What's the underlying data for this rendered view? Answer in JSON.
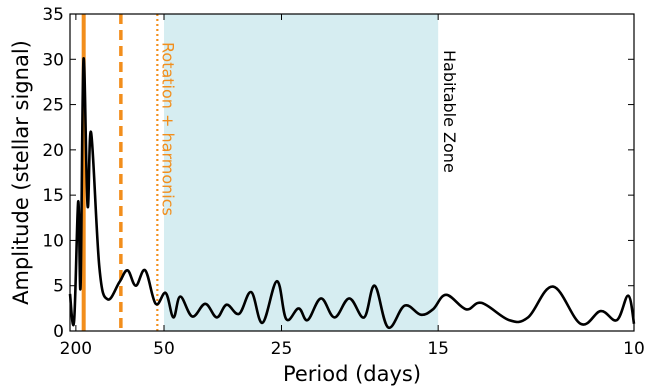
{
  "chart_data": {
    "type": "line",
    "xlabel": "Period (days)",
    "ylabel": "Amplitude (stellar signal)",
    "x_scale": "reciprocal",
    "x_range_days": [
      250,
      10
    ],
    "ylim": [
      0,
      35
    ],
    "xticks": [
      {
        "value": 200,
        "label": "200"
      },
      {
        "value": 50,
        "label": "50"
      },
      {
        "value": 25,
        "label": "25"
      },
      {
        "value": 15,
        "label": "15"
      },
      {
        "value": 10,
        "label": "10"
      }
    ],
    "yticks": [
      0,
      5,
      10,
      15,
      20,
      25,
      30,
      35
    ],
    "series": [
      {
        "color": "#000000",
        "points": [
          [
            250.0,
            4.1
          ],
          [
            212.8,
            1.1
          ],
          [
            185.2,
            14.3
          ],
          [
            172.4,
            5.0
          ],
          [
            158.7,
            30.0
          ],
          [
            142.9,
            13.8
          ],
          [
            131.6,
            21.9
          ],
          [
            111.1,
            7.0
          ],
          [
            96.2,
            3.5
          ],
          [
            80.6,
            5.4
          ],
          [
            72.5,
            6.7
          ],
          [
            65.8,
            5.0
          ],
          [
            59.5,
            6.7
          ],
          [
            53.8,
            3.0
          ],
          [
            49.3,
            4.2
          ],
          [
            46.3,
            1.5
          ],
          [
            43.9,
            3.8
          ],
          [
            40.3,
            1.6
          ],
          [
            37.0,
            3.0
          ],
          [
            34.5,
            1.5
          ],
          [
            32.6,
            2.9
          ],
          [
            30.5,
            1.9
          ],
          [
            28.7,
            4.3
          ],
          [
            27.2,
            0.9
          ],
          [
            25.5,
            5.5
          ],
          [
            24.5,
            1.3
          ],
          [
            23.3,
            2.5
          ],
          [
            22.5,
            1.2
          ],
          [
            21.4,
            3.6
          ],
          [
            20.4,
            1.5
          ],
          [
            19.4,
            3.6
          ],
          [
            18.5,
            1.5
          ],
          [
            17.9,
            5.0
          ],
          [
            17.2,
            0.4
          ],
          [
            16.4,
            2.8
          ],
          [
            15.7,
            1.8
          ],
          [
            15.2,
            2.4
          ],
          [
            14.7,
            4.0
          ],
          [
            14.0,
            2.4
          ],
          [
            13.5,
            3.1
          ],
          [
            12.7,
            1.2
          ],
          [
            12.2,
            1.5
          ],
          [
            11.6,
            4.9
          ],
          [
            11.0,
            0.8
          ],
          [
            10.6,
            2.2
          ],
          [
            10.3,
            1.2
          ],
          [
            10.1,
            3.9
          ],
          [
            10.0,
            0.8
          ]
        ]
      }
    ],
    "vertical_lines": [
      {
        "period": 158,
        "color": "#f28e1c",
        "style": "solid"
      },
      {
        "period": 79,
        "color": "#f28e1c",
        "style": "dashed"
      },
      {
        "period": 53,
        "color": "#f28e1c",
        "style": "dotted"
      }
    ],
    "shaded_region": {
      "period_range": [
        50,
        15
      ],
      "color": "#d6edf1",
      "label": "Habitable Zone"
    },
    "annotations": [
      {
        "text": "Rotation + harmonics",
        "color": "#f28e1c"
      }
    ]
  }
}
